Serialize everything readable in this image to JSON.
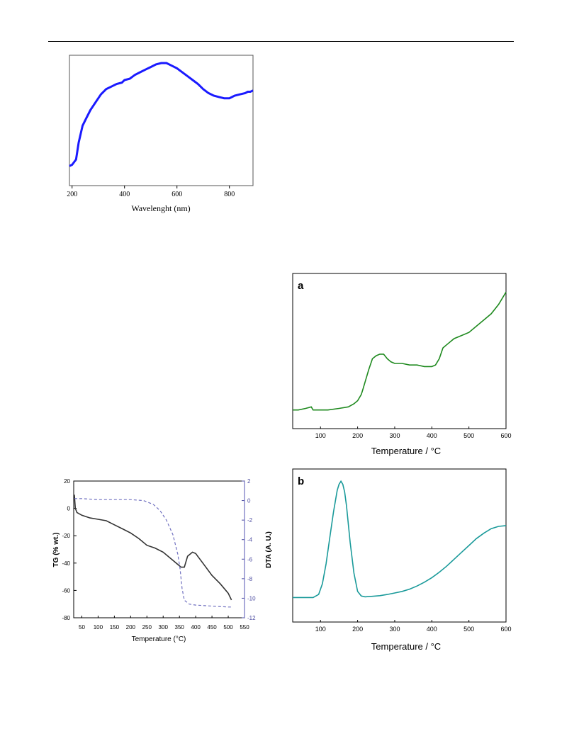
{
  "chart_data": [
    {
      "id": "uvvis",
      "type": "line",
      "xlabel": "Wavelenght (nm)",
      "ylabel": "",
      "xlim": [
        190,
        890
      ],
      "ylim": [
        0,
        1.0
      ],
      "xticks": [
        200,
        400,
        600,
        800
      ],
      "yticks": [],
      "color": "#1a1aff",
      "series": [
        {
          "x": [
            190,
            200,
            215,
            225,
            240,
            255,
            270,
            290,
            310,
            330,
            350,
            370,
            390,
            400,
            420,
            440,
            460,
            480,
            500,
            520,
            540,
            560,
            580,
            600,
            620,
            640,
            660,
            680,
            700,
            720,
            740,
            760,
            780,
            800,
            820,
            840,
            860,
            870,
            880,
            890
          ],
          "y": [
            0.15,
            0.16,
            0.2,
            0.33,
            0.46,
            0.52,
            0.58,
            0.64,
            0.7,
            0.74,
            0.76,
            0.78,
            0.79,
            0.81,
            0.82,
            0.85,
            0.87,
            0.89,
            0.91,
            0.93,
            0.94,
            0.94,
            0.92,
            0.9,
            0.87,
            0.84,
            0.81,
            0.78,
            0.74,
            0.71,
            0.69,
            0.68,
            0.67,
            0.67,
            0.69,
            0.7,
            0.71,
            0.72,
            0.72,
            0.73
          ]
        }
      ]
    },
    {
      "id": "tg-dta",
      "type": "line",
      "xlabel": "Temperature (°C)",
      "ylabel": "TG (% wt.)",
      "y2label": "DTA (A. U.)",
      "xlim": [
        25,
        550
      ],
      "ylim": [
        -80,
        20
      ],
      "y2lim": [
        -12,
        2
      ],
      "xticks": [
        50,
        100,
        150,
        200,
        250,
        300,
        350,
        400,
        450,
        500,
        550
      ],
      "yticks": [
        20,
        0,
        -20,
        -40,
        -60,
        -80
      ],
      "y2ticks": [
        2,
        0,
        -2,
        -4,
        -6,
        -8,
        -10,
        -12
      ],
      "series": [
        {
          "name": "",
          "axis": "left",
          "color": "#333333",
          "style": "solid",
          "x": [
            27,
            30,
            35,
            50,
            75,
            100,
            125,
            150,
            175,
            200,
            225,
            250,
            275,
            300,
            325,
            345,
            355,
            365,
            375,
            390,
            400,
            425,
            450,
            475,
            500,
            510
          ],
          "y": [
            10,
            0,
            -3,
            -5,
            -7,
            -8,
            -9,
            -12,
            -15,
            -18,
            -22,
            -27,
            -29,
            -32,
            -37,
            -41,
            -43,
            -43,
            -35,
            -32,
            -33,
            -41,
            -49,
            -55,
            -62,
            -67
          ]
        },
        {
          "name": "",
          "axis": "right",
          "color": "#7070c0",
          "style": "dashed",
          "x": [
            27,
            50,
            100,
            150,
            200,
            240,
            270,
            290,
            310,
            330,
            345,
            352,
            358,
            365,
            380,
            400,
            450,
            500,
            510
          ],
          "y": [
            0.2,
            0.2,
            0.1,
            0.1,
            0.1,
            0.0,
            -0.4,
            -1.0,
            -2.0,
            -3.5,
            -5.5,
            -7.0,
            -9.0,
            -10.2,
            -10.6,
            -10.7,
            -10.8,
            -10.9,
            -10.9
          ]
        }
      ]
    },
    {
      "id": "panel-a",
      "type": "line",
      "panel_label": "a",
      "xlabel": "Temperature / °C",
      "ylabel": "",
      "xlim": [
        25,
        600
      ],
      "ylim": [
        0,
        1.0
      ],
      "xticks": [
        100,
        200,
        300,
        400,
        500,
        600
      ],
      "yticks": [],
      "color": "#1f8a1f",
      "series": [
        {
          "x": [
            25,
            40,
            60,
            75,
            80,
            100,
            120,
            150,
            175,
            190,
            200,
            210,
            215,
            220,
            230,
            240,
            250,
            260,
            270,
            280,
            290,
            300,
            320,
            340,
            360,
            380,
            400,
            410,
            420,
            430,
            440,
            460,
            480,
            500,
            520,
            540,
            560,
            580,
            600
          ],
          "y": [
            0.12,
            0.12,
            0.13,
            0.14,
            0.12,
            0.12,
            0.12,
            0.13,
            0.14,
            0.16,
            0.18,
            0.22,
            0.26,
            0.3,
            0.38,
            0.45,
            0.47,
            0.48,
            0.48,
            0.45,
            0.43,
            0.42,
            0.42,
            0.41,
            0.41,
            0.4,
            0.4,
            0.41,
            0.45,
            0.52,
            0.54,
            0.58,
            0.6,
            0.62,
            0.66,
            0.7,
            0.74,
            0.8,
            0.88
          ]
        }
      ]
    },
    {
      "id": "panel-b",
      "type": "line",
      "panel_label": "b",
      "xlabel": "Temperature / °C",
      "ylabel": "",
      "xlim": [
        25,
        600
      ],
      "ylim": [
        0,
        1.0
      ],
      "xticks": [
        100,
        200,
        300,
        400,
        500,
        600
      ],
      "yticks": [],
      "color": "#1a9a9a",
      "series": [
        {
          "x": [
            25,
            60,
            80,
            95,
            105,
            115,
            125,
            135,
            145,
            150,
            155,
            160,
            165,
            170,
            180,
            190,
            200,
            210,
            220,
            240,
            260,
            280,
            300,
            320,
            340,
            360,
            380,
            400,
            420,
            440,
            460,
            480,
            500,
            520,
            540,
            560,
            580,
            600
          ],
          "y": [
            0.16,
            0.16,
            0.16,
            0.18,
            0.25,
            0.38,
            0.55,
            0.72,
            0.86,
            0.9,
            0.92,
            0.9,
            0.85,
            0.76,
            0.52,
            0.32,
            0.2,
            0.17,
            0.165,
            0.168,
            0.172,
            0.18,
            0.19,
            0.2,
            0.215,
            0.235,
            0.26,
            0.29,
            0.325,
            0.365,
            0.41,
            0.455,
            0.5,
            0.545,
            0.58,
            0.61,
            0.625,
            0.63
          ]
        }
      ]
    }
  ]
}
